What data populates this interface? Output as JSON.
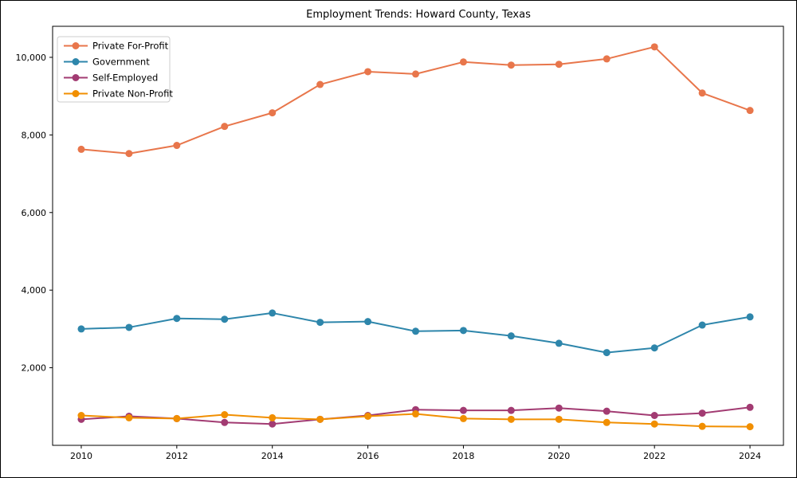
{
  "chart_data": {
    "type": "line",
    "title": "Employment Trends: Howard County, Texas",
    "xlabel": "",
    "ylabel": "",
    "x": [
      2010,
      2011,
      2012,
      2013,
      2014,
      2015,
      2016,
      2017,
      2018,
      2019,
      2020,
      2021,
      2022,
      2023,
      2024
    ],
    "series": [
      {
        "name": "Private For-Profit",
        "color": "#E8764B",
        "values": [
          7630,
          7520,
          7730,
          8220,
          8570,
          9300,
          9630,
          9570,
          9880,
          9800,
          9820,
          9960,
          10270,
          9080,
          8630
        ]
      },
      {
        "name": "Government",
        "color": "#2E86AB",
        "values": [
          3000,
          3040,
          3270,
          3250,
          3410,
          3170,
          3190,
          2940,
          2960,
          2820,
          2630,
          2390,
          2510,
          3100,
          3310
        ]
      },
      {
        "name": "Self-Employed",
        "color": "#A23B72",
        "values": [
          670,
          750,
          690,
          590,
          550,
          670,
          770,
          920,
          900,
          900,
          960,
          880,
          770,
          830,
          980
        ]
      },
      {
        "name": "Private Non-Profit",
        "color": "#F18F01",
        "values": [
          770,
          710,
          690,
          790,
          710,
          670,
          750,
          810,
          690,
          670,
          670,
          590,
          550,
          490,
          480
        ]
      }
    ],
    "xlim": [
      2009.4,
      2024.7
    ],
    "ylim": [
      0,
      10800
    ],
    "x_ticks": [
      2010,
      2012,
      2014,
      2016,
      2018,
      2020,
      2022,
      2024
    ],
    "y_ticks": [
      2000,
      4000,
      6000,
      8000,
      10000
    ],
    "y_tick_labels": [
      "2,000",
      "4,000",
      "6,000",
      "8,000",
      "10,000"
    ],
    "grid": false,
    "legend_position": "upper left",
    "axes_color": "#000000",
    "background_color": "#ffffff",
    "marker": "circle",
    "marker_radius": 4.5,
    "line_width": 2
  }
}
